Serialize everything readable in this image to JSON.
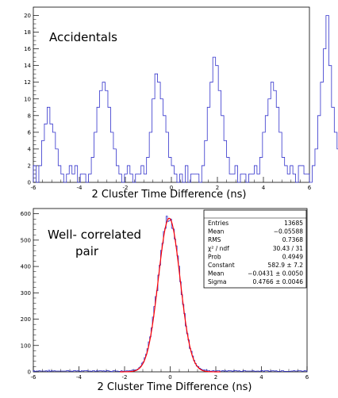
{
  "chart_data": [
    {
      "type": "histogram",
      "panel_label": "Accidentals",
      "xlabel": "2 Cluster Time Difference (ns)",
      "xlim": [
        -6,
        6
      ],
      "ylim": [
        0,
        21
      ],
      "x_ticks": [
        "-6",
        "-4",
        "-2",
        "0",
        "2",
        "4",
        "6"
      ],
      "y_ticks": [
        "0",
        "2",
        "4",
        "6",
        "8",
        "10",
        "12",
        "14",
        "16",
        "18",
        "20"
      ],
      "bin_width": 0.12,
      "line_color": "#3333cc",
      "values": [
        2,
        0,
        2,
        5,
        7,
        9,
        7,
        6,
        4,
        2,
        1,
        0,
        1,
        2,
        1,
        2,
        0,
        1,
        1,
        0,
        1,
        3,
        6,
        9,
        11,
        12,
        11,
        9,
        6,
        4,
        2,
        1,
        0,
        1,
        2,
        1,
        0,
        1,
        1,
        2,
        1,
        3,
        6,
        10,
        13,
        12,
        10,
        8,
        6,
        3,
        2,
        1,
        0,
        1,
        0,
        2,
        0,
        1,
        1,
        1,
        0,
        2,
        5,
        9,
        12,
        15,
        14,
        11,
        8,
        5,
        3,
        1,
        1,
        2,
        0,
        1,
        1,
        0,
        1,
        1,
        2,
        1,
        3,
        6,
        8,
        10,
        12,
        11,
        9,
        6,
        3,
        2,
        1,
        2,
        1,
        0,
        2,
        2,
        1,
        1,
        0,
        2,
        4,
        8,
        12,
        16,
        20,
        14,
        9,
        6,
        4,
        2,
        1,
        1,
        0,
        1,
        1,
        2,
        4,
        8,
        12,
        15
      ]
    },
    {
      "type": "histogram",
      "panel_label_lines": [
        "Well- correlated",
        "pair"
      ],
      "xlabel": "2 Cluster Time Difference (ns)",
      "xlim": [
        -6,
        6
      ],
      "ylim": [
        0,
        620
      ],
      "x_ticks": [
        "-6",
        "-4",
        "-2",
        "0",
        "2",
        "4",
        "6"
      ],
      "y_ticks": [
        "0",
        "100",
        "200",
        "300",
        "400",
        "500",
        "600"
      ],
      "bin_width": 0.06,
      "line_color": "#3333cc",
      "fit_color": "#ff0000",
      "fit": {
        "function": "gaussian",
        "constant": 582.9,
        "mean": -0.0431,
        "sigma": 0.4766
      },
      "stats_box": [
        {
          "label": "Entries",
          "value": "13685"
        },
        {
          "label": "Mean",
          "value": "−0.05588"
        },
        {
          "label": "RMS",
          "value": "0.7368"
        },
        {
          "label": "χ² / ndf",
          "value": "30.43 / 31"
        },
        {
          "label": "Prob",
          "value": "0.4949"
        },
        {
          "label": "Constant",
          "value": "582.9 ± 7.2"
        },
        {
          "label": "Mean",
          "value": "−0.0431 ± 0.0050"
        },
        {
          "label": "Sigma",
          "value": "0.4766 ± 0.0046"
        }
      ]
    }
  ]
}
